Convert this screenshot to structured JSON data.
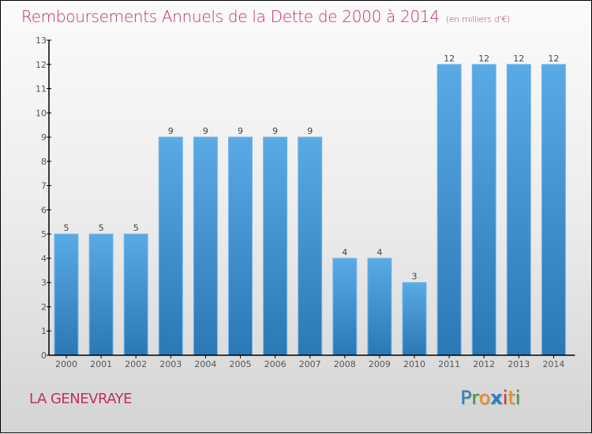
{
  "chart_data": {
    "type": "bar",
    "title": "Remboursements Annuels de la Dette de 2000 à 2014",
    "unit_note": "(en milliers d'€)",
    "xlabel": "",
    "ylabel": "",
    "categories": [
      "2000",
      "2001",
      "2002",
      "2003",
      "2004",
      "2005",
      "2006",
      "2007",
      "2008",
      "2009",
      "2010",
      "2011",
      "2012",
      "2013",
      "2014"
    ],
    "values": [
      5,
      5,
      5,
      9,
      9,
      9,
      9,
      9,
      4,
      4,
      3,
      12,
      12,
      12,
      12
    ],
    "ylim": [
      0,
      13
    ],
    "yticks": [
      0,
      1,
      2,
      3,
      4,
      5,
      6,
      7,
      8,
      9,
      10,
      11,
      12,
      13
    ],
    "grid": false,
    "legend": "none",
    "bar_color_top": "#5aaae6",
    "bar_color_bottom": "#2a78b4"
  },
  "commune": "LA GENEVRAYE",
  "logo": {
    "letters": [
      {
        "ch": "P",
        "color": "#2a7fc4"
      },
      {
        "ch": "r",
        "color": "#3aa03a"
      },
      {
        "ch": "o",
        "color": "#f08a1c"
      },
      {
        "ch": "x",
        "color": "#2a7fc4"
      },
      {
        "ch": "i",
        "color": "#e03030"
      },
      {
        "ch": "t",
        "color": "#f08a1c"
      },
      {
        "ch": "i",
        "color": "#3aa03a"
      }
    ]
  }
}
